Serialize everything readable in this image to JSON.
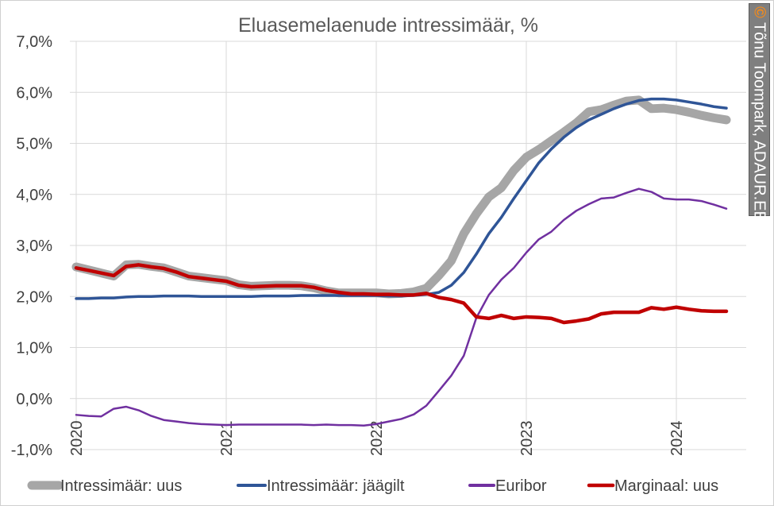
{
  "credit": {
    "copyright_symbol": "©",
    "text": "Tõnu Toompark, ADAUR.EE"
  },
  "chart_data": {
    "type": "line",
    "title": "Eluasemelaenude intressimäär, %",
    "xlabel": "",
    "ylabel": "",
    "ylim": [
      -1.0,
      7.0
    ],
    "y_ticks": [
      "-1,0%",
      "0,0%",
      "1,0%",
      "2,0%",
      "3,0%",
      "4,0%",
      "5,0%",
      "6,0%",
      "7,0%"
    ],
    "x_ticks": [
      "2020",
      "2021",
      "2022",
      "2023",
      "2024"
    ],
    "grid": true,
    "legend_position": "bottom",
    "x_start": "2020-01",
    "x_step": "month",
    "series": [
      {
        "name": "Intressimäär: uus",
        "color": "#a6a6a6",
        "values": [
          2.58,
          2.52,
          2.46,
          2.4,
          2.62,
          2.63,
          2.59,
          2.56,
          2.48,
          2.4,
          2.37,
          2.34,
          2.31,
          2.23,
          2.2,
          2.21,
          2.22,
          2.22,
          2.21,
          2.17,
          2.11,
          2.07,
          2.07,
          2.07,
          2.07,
          2.05,
          2.06,
          2.09,
          2.16,
          2.41,
          2.7,
          3.23,
          3.62,
          3.95,
          4.13,
          4.47,
          4.73,
          4.88,
          5.05,
          5.22,
          5.4,
          5.62,
          5.66,
          5.75,
          5.83,
          5.85,
          5.68,
          5.69,
          5.66,
          5.61,
          5.55,
          5.5,
          5.46
        ]
      },
      {
        "name": "Intressimäär: jäägilt",
        "color": "#2f5597",
        "values": [
          1.96,
          1.96,
          1.97,
          1.97,
          1.99,
          2.0,
          2.0,
          2.01,
          2.01,
          2.01,
          2.0,
          2.0,
          2.0,
          2.0,
          2.0,
          2.01,
          2.01,
          2.01,
          2.02,
          2.02,
          2.02,
          2.02,
          2.02,
          2.02,
          2.02,
          2.01,
          2.01,
          2.02,
          2.04,
          2.08,
          2.22,
          2.47,
          2.83,
          3.23,
          3.55,
          3.92,
          4.27,
          4.62,
          4.89,
          5.12,
          5.31,
          5.46,
          5.57,
          5.68,
          5.77,
          5.84,
          5.87,
          5.87,
          5.85,
          5.81,
          5.77,
          5.72,
          5.69
        ]
      },
      {
        "name": "Euribor",
        "color": "#7030a0",
        "values": [
          -0.32,
          -0.34,
          -0.35,
          -0.2,
          -0.16,
          -0.23,
          -0.34,
          -0.42,
          -0.45,
          -0.48,
          -0.5,
          -0.51,
          -0.52,
          -0.51,
          -0.51,
          -0.51,
          -0.51,
          -0.51,
          -0.51,
          -0.52,
          -0.51,
          -0.52,
          -0.52,
          -0.53,
          -0.5,
          -0.45,
          -0.4,
          -0.31,
          -0.14,
          0.15,
          0.45,
          0.84,
          1.58,
          2.03,
          2.33,
          2.56,
          2.86,
          3.12,
          3.27,
          3.5,
          3.68,
          3.81,
          3.92,
          3.94,
          4.03,
          4.11,
          4.05,
          3.92,
          3.9,
          3.9,
          3.87,
          3.8,
          3.72
        ]
      },
      {
        "name": "Marginaal: uus",
        "color": "#c00000",
        "values": [
          2.56,
          2.51,
          2.46,
          2.41,
          2.59,
          2.62,
          2.58,
          2.55,
          2.48,
          2.39,
          2.36,
          2.33,
          2.3,
          2.22,
          2.19,
          2.2,
          2.21,
          2.21,
          2.21,
          2.18,
          2.12,
          2.08,
          2.05,
          2.05,
          2.04,
          2.04,
          2.03,
          2.03,
          2.06,
          1.98,
          1.94,
          1.87,
          1.6,
          1.57,
          1.63,
          1.57,
          1.6,
          1.59,
          1.57,
          1.49,
          1.52,
          1.56,
          1.66,
          1.69,
          1.69,
          1.69,
          1.78,
          1.75,
          1.79,
          1.75,
          1.72,
          1.71,
          1.71
        ]
      }
    ]
  }
}
